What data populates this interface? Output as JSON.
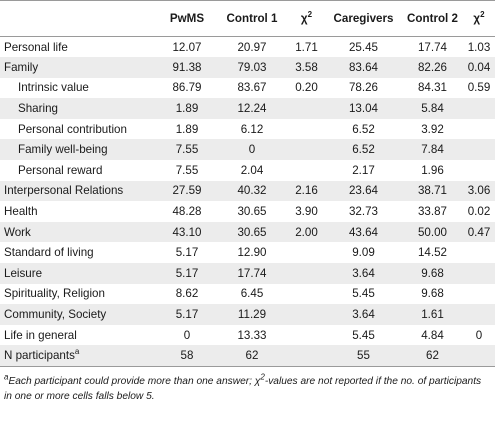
{
  "header": {
    "col_blank": "",
    "col1": "PwMS",
    "col2": "Control 1",
    "chi_symbol": "χ",
    "chi_sup": "2",
    "col4": "Caregivers",
    "col5": "Control 2"
  },
  "rows": [
    {
      "label": "Personal life",
      "c1": "12.07",
      "c2": "20.97",
      "c3": "1.71",
      "c4": "25.45",
      "c5": "17.74",
      "c6": "1.03"
    },
    {
      "label": "Family",
      "c1": "91.38",
      "c2": "79.03",
      "c3": "3.58",
      "c4": "83.64",
      "c5": "82.26",
      "c6": "0.04"
    },
    {
      "label": "Intrinsic value",
      "c1": "86.79",
      "c2": "83.67",
      "c3": "0.20",
      "c4": "78.26",
      "c5": "84.31",
      "c6": "0.59"
    },
    {
      "label": "Sharing",
      "c1": "1.89",
      "c2": "12.24",
      "c3": "",
      "c4": "13.04",
      "c5": "5.84",
      "c6": ""
    },
    {
      "label": "Personal contribution",
      "c1": "1.89",
      "c2": "6.12",
      "c3": "",
      "c4": "6.52",
      "c5": "3.92",
      "c6": ""
    },
    {
      "label": "Family well-being",
      "c1": "7.55",
      "c2": "0",
      "c3": "",
      "c4": "6.52",
      "c5": "7.84",
      "c6": ""
    },
    {
      "label": "Personal reward",
      "c1": "7.55",
      "c2": "2.04",
      "c3": "",
      "c4": "2.17",
      "c5": "1.96",
      "c6": ""
    },
    {
      "label": "Interpersonal Relations",
      "c1": "27.59",
      "c2": "40.32",
      "c3": "2.16",
      "c4": "23.64",
      "c5": "38.71",
      "c6": "3.06"
    },
    {
      "label": "Health",
      "c1": "48.28",
      "c2": "30.65",
      "c3": "3.90",
      "c4": "32.73",
      "c5": "33.87",
      "c6": "0.02"
    },
    {
      "label": "Work",
      "c1": "43.10",
      "c2": "30.65",
      "c3": "2.00",
      "c4": "43.64",
      "c5": "50.00",
      "c6": "0.47"
    },
    {
      "label": "Standard of living",
      "c1": "5.17",
      "c2": "12.90",
      "c3": "",
      "c4": "9.09",
      "c5": "14.52",
      "c6": ""
    },
    {
      "label": "Leisure",
      "c1": "5.17",
      "c2": "17.74",
      "c3": "",
      "c4": "3.64",
      "c5": "9.68",
      "c6": ""
    },
    {
      "label": "Spirituality, Religion",
      "c1": "8.62",
      "c2": "6.45",
      "c3": "",
      "c4": "5.45",
      "c5": "9.68",
      "c6": ""
    },
    {
      "label": "Community, Society",
      "c1": "5.17",
      "c2": "11.29",
      "c3": "",
      "c4": "3.64",
      "c5": "1.61",
      "c6": ""
    },
    {
      "label": "Life in general",
      "c1": "0",
      "c2": "13.33",
      "c3": "",
      "c4": "5.45",
      "c5": "4.84",
      "c6": "0"
    },
    {
      "label": "N participants",
      "label_sup": "a",
      "c1": "58",
      "c2": "62",
      "c3": "",
      "c4": "55",
      "c5": "62",
      "c6": ""
    }
  ],
  "footnote": {
    "marker": "a",
    "text_before": "Each participant could provide more than one answer; ",
    "chi_symbol": "χ",
    "chi_sup": "2",
    "text_after": "-values are not reported if the no. of participants in one or more cells falls below 5."
  }
}
